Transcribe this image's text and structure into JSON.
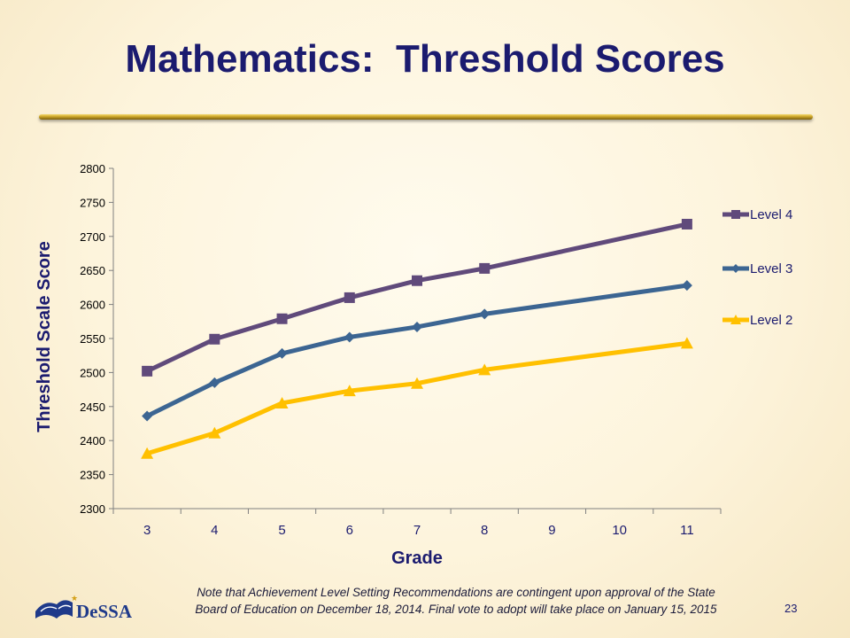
{
  "slide": {
    "title": "Mathematics:  Threshold Scores",
    "footnote_line1": "Note that Achievement Level Setting Recommendations are contingent upon approval of the State",
    "footnote_line2": "Board of Education on December 18, 2014. Final vote to adopt will take place on January 15, 2015",
    "page_number": "23",
    "logo_text": "DeSSA",
    "colors": {
      "title": "#1b1b6f",
      "rule": "#c9a227",
      "logo": "#1f3a8a"
    }
  },
  "chart_data": {
    "type": "line",
    "title": "",
    "xlabel": "Grade",
    "ylabel": "Threshold Scale Score",
    "categories": [
      "3",
      "4",
      "5",
      "6",
      "7",
      "8",
      "9",
      "10",
      "11"
    ],
    "ylim": [
      2300,
      2800
    ],
    "yticks": [
      2300,
      2350,
      2400,
      2450,
      2500,
      2550,
      2600,
      2650,
      2700,
      2750,
      2800
    ],
    "grid": false,
    "legend_position": "right",
    "series": [
      {
        "name": "Level 4",
        "color": "#604a7b",
        "marker": "square",
        "values": [
          2502,
          2549,
          2579,
          2610,
          2635,
          2653,
          null,
          null,
          2718
        ]
      },
      {
        "name": "Level 3",
        "color": "#3c6592",
        "marker": "diamond",
        "values": [
          2436,
          2485,
          2528,
          2552,
          2567,
          2586,
          null,
          null,
          2628
        ]
      },
      {
        "name": "Level 2",
        "color": "#ffc000",
        "marker": "triangle",
        "values": [
          2381,
          2411,
          2455,
          2473,
          2484,
          2504,
          null,
          null,
          2543
        ]
      }
    ]
  }
}
